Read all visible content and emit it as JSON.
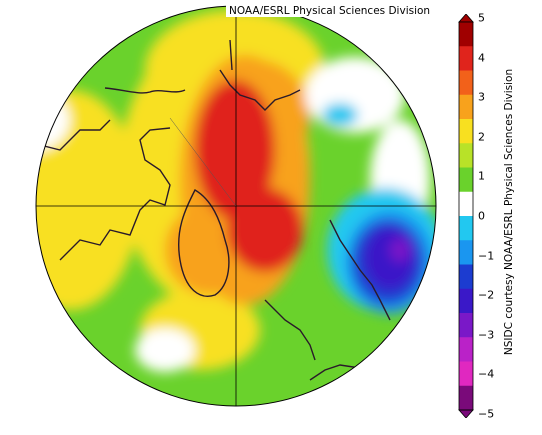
{
  "credit_top": "NOAA/ESRL Physical Sciences Division",
  "credit_side": "NSIDC courtesy NOAA/ESRL Physical Sciences Division",
  "colorbar": {
    "tick_labels": [
      "5",
      "4",
      "3",
      "2",
      "1",
      "0",
      "−1",
      "−2",
      "−3",
      "−4",
      "−5"
    ],
    "colors": [
      "#a00000",
      "#e0241c",
      "#f2611a",
      "#f8a21c",
      "#f8e020",
      "#b8e228",
      "#6ad22c",
      "#ffffff",
      "#22c8f0",
      "#1a96f0",
      "#1c3cd0",
      "#3a18c8",
      "#7a18c8",
      "#ba22c8",
      "#e028c0",
      "#7a0a7a"
    ]
  },
  "map": {
    "projection": "north-polar-stereographic",
    "background": "#6ad22c"
  }
}
